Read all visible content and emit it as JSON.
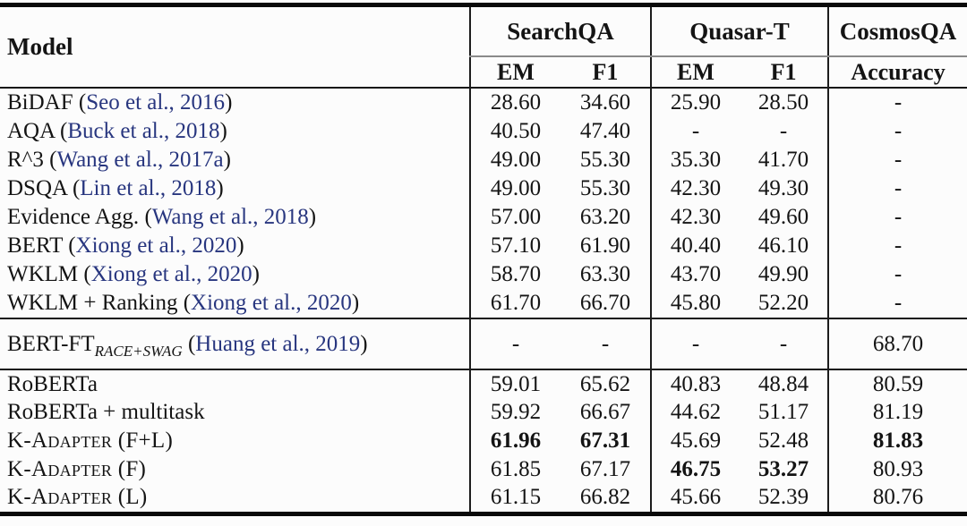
{
  "table": {
    "model_header": "Model",
    "group_headers": {
      "searchqa": "SearchQA",
      "quasart": "Quasar-T",
      "cosmosqa": "CosmosQA"
    },
    "sub_headers": {
      "searchqa_em": "EM",
      "searchqa_f1": "F1",
      "quasart_em": "EM",
      "quasart_f1": "F1",
      "cosmosqa_acc": "Accuracy"
    },
    "colors": {
      "citation_link": "#28367f",
      "rule": "#0a0a0a"
    },
    "sections": [
      {
        "rows": [
          {
            "model": "BiDAF",
            "citation": "Seo et al., 2016",
            "values": [
              "28.60",
              "34.60",
              "25.90",
              "28.50",
              "-"
            ]
          },
          {
            "model": "AQA",
            "citation": "Buck et al., 2018",
            "values": [
              "40.50",
              "47.40",
              "-",
              "-",
              "-"
            ]
          },
          {
            "model": "R^3",
            "citation": "Wang et al., 2017a",
            "values": [
              "49.00",
              "55.30",
              "35.30",
              "41.70",
              "-"
            ]
          },
          {
            "model": "DSQA",
            "citation": "Lin et al., 2018",
            "values": [
              "49.00",
              "55.30",
              "42.30",
              "49.30",
              "-"
            ]
          },
          {
            "model": "Evidence Agg.",
            "citation": "Wang et al., 2018",
            "values": [
              "57.00",
              "63.20",
              "42.30",
              "49.60",
              "-"
            ]
          },
          {
            "model": "BERT",
            "citation": "Xiong et al., 2020",
            "values": [
              "57.10",
              "61.90",
              "40.40",
              "46.10",
              "-"
            ]
          },
          {
            "model": "WKLM",
            "citation": "Xiong et al., 2020",
            "values": [
              "58.70",
              "63.30",
              "43.70",
              "49.90",
              "-"
            ]
          },
          {
            "model": "WKLM + Ranking",
            "citation": "Xiong et al., 2020",
            "values": [
              "61.70",
              "66.70",
              "45.80",
              "52.20",
              "-"
            ]
          }
        ]
      },
      {
        "rows": [
          {
            "model": "BERT-FT",
            "subscript": "RACE+SWAG",
            "citation": "Huang et al., 2019",
            "values": [
              "-",
              "-",
              "-",
              "-",
              "68.70"
            ]
          }
        ]
      },
      {
        "rows": [
          {
            "model": "RoBERTa",
            "values": [
              "59.01",
              "65.62",
              "40.83",
              "48.84",
              "80.59"
            ]
          },
          {
            "model": "RoBERTa + multitask",
            "values": [
              "59.92",
              "66.67",
              "44.62",
              "51.17",
              "81.19"
            ]
          },
          {
            "model": "K-Adapter (F+L)",
            "smallcaps": true,
            "values": [
              "61.96",
              "67.31",
              "45.69",
              "52.48",
              "81.83"
            ],
            "bold": [
              true,
              true,
              false,
              false,
              true
            ]
          },
          {
            "model": "K-Adapter (F)",
            "smallcaps": true,
            "values": [
              "61.85",
              "67.17",
              "46.75",
              "53.27",
              "80.93"
            ],
            "bold": [
              false,
              false,
              true,
              true,
              false
            ]
          },
          {
            "model": "K-Adapter (L)",
            "smallcaps": true,
            "values": [
              "61.15",
              "66.82",
              "45.66",
              "52.39",
              "80.76"
            ]
          }
        ]
      }
    ]
  }
}
